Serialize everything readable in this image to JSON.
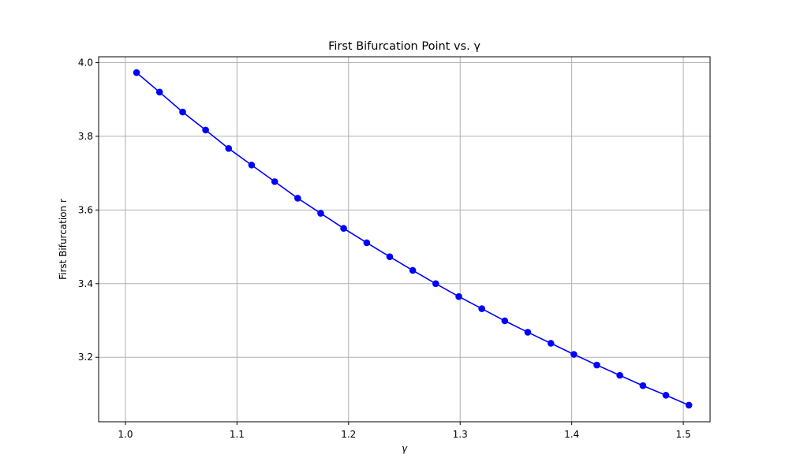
{
  "chart_data": {
    "type": "line",
    "title": "First Bifurcation Point vs. γ",
    "xlabel": "γ",
    "ylabel": "First Bifurcation r",
    "xlim": [
      0.976,
      1.524
    ],
    "ylim": [
      3.025,
      4.016
    ],
    "xticks": [
      1.0,
      1.1,
      1.2,
      1.3,
      1.4,
      1.5
    ],
    "xtick_labels": [
      "1.0",
      "1.1",
      "1.2",
      "1.3",
      "1.4",
      "1.5"
    ],
    "yticks": [
      3.2,
      3.4,
      3.6,
      3.8,
      4.0
    ],
    "ytick_labels": [
      "3.2",
      "3.4",
      "3.6",
      "3.8",
      "4.0"
    ],
    "grid": true,
    "series": [
      {
        "color": "#0000ff",
        "marker": "circle",
        "x": [
          1.01,
          1.0306,
          1.0513,
          1.0719,
          1.0925,
          1.1131,
          1.1338,
          1.1544,
          1.175,
          1.1956,
          1.2163,
          1.2369,
          1.2575,
          1.2781,
          1.2988,
          1.3194,
          1.34,
          1.3606,
          1.3813,
          1.4019,
          1.4225,
          1.4431,
          1.4638,
          1.4844,
          1.505
        ],
        "y": [
          3.973,
          3.92,
          3.866,
          3.817,
          3.767,
          3.722,
          3.677,
          3.632,
          3.591,
          3.55,
          3.511,
          3.473,
          3.436,
          3.4,
          3.365,
          3.332,
          3.299,
          3.268,
          3.238,
          3.208,
          3.179,
          3.151,
          3.123,
          3.097,
          3.07
        ]
      }
    ]
  }
}
